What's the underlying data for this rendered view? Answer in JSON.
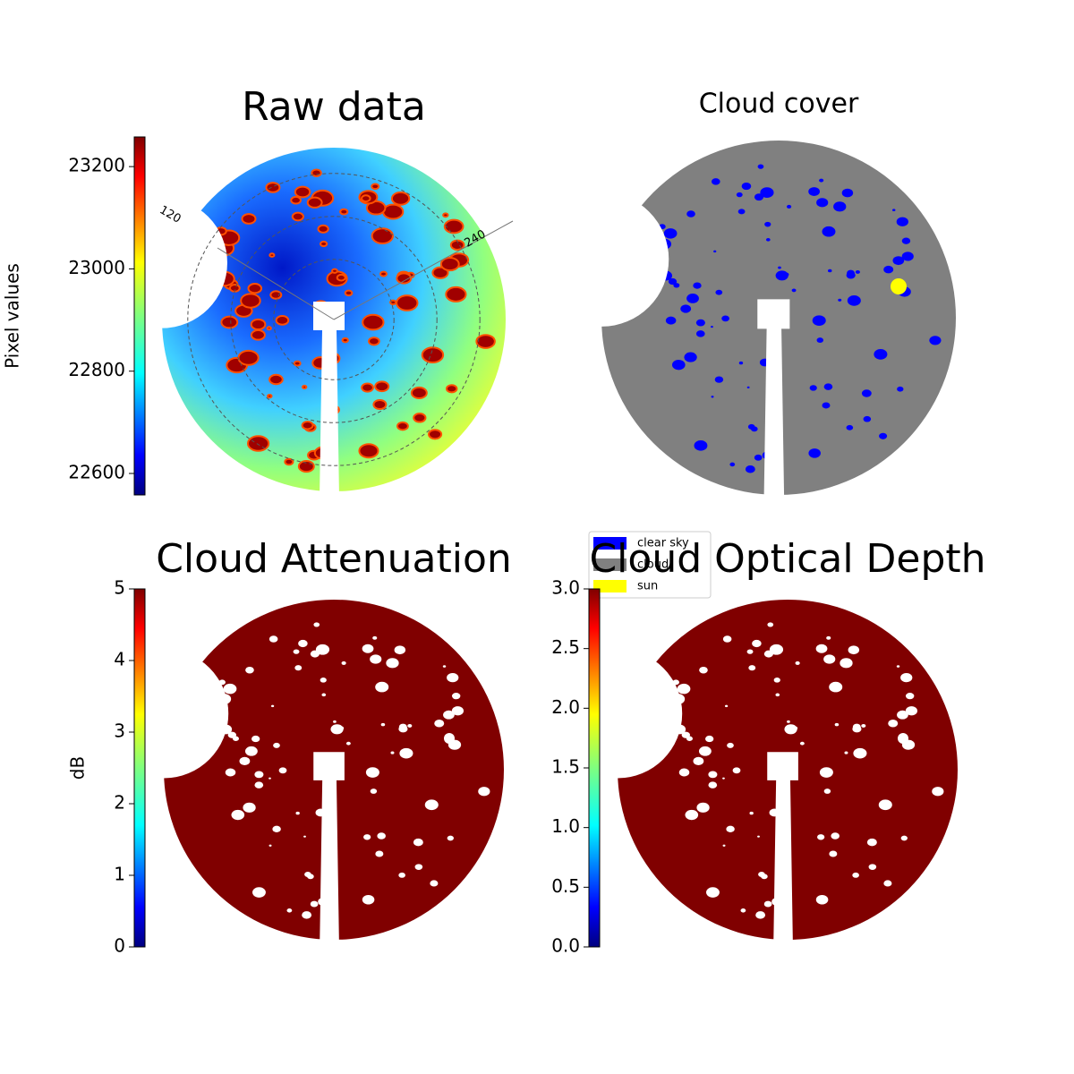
{
  "chart_data": [
    {
      "type": "image",
      "title": "Raw data",
      "colorbar": {
        "label": "Pixel values",
        "colormap": "jet",
        "ylim": [
          22558,
          23258
        ],
        "yticks": [
          22600,
          22800,
          23000,
          23200
        ]
      },
      "polar_labels": [
        "120",
        "240"
      ]
    },
    {
      "type": "categorical_image",
      "title": "Cloud cover",
      "legend": {
        "entries": [
          {
            "name": "clear sky",
            "color": "#0000ff"
          },
          {
            "name": "cloud",
            "color": "#808080"
          },
          {
            "name": "sun",
            "color": "#ffff00"
          }
        ]
      }
    },
    {
      "type": "image",
      "title": "Cloud Attenuation",
      "fill_color": "#800000",
      "colorbar": {
        "label": "dB",
        "colormap": "jet",
        "ylim": [
          0,
          5
        ],
        "yticks": [
          0,
          1,
          2,
          3,
          4,
          5
        ]
      }
    },
    {
      "type": "image",
      "title": "Cloud Optical Depth",
      "fill_color": "#800000",
      "colorbar": {
        "colormap": "jet",
        "ylim": [
          0,
          3
        ],
        "yticks": [
          {
            "value": 0,
            "label": "0.0"
          },
          0.5,
          {
            "value": 1,
            "label": "1.0"
          },
          1.5,
          {
            "value": 2,
            "label": "2.0"
          },
          2.5,
          {
            "value": 3,
            "label": "3.0"
          }
        ]
      }
    }
  ]
}
